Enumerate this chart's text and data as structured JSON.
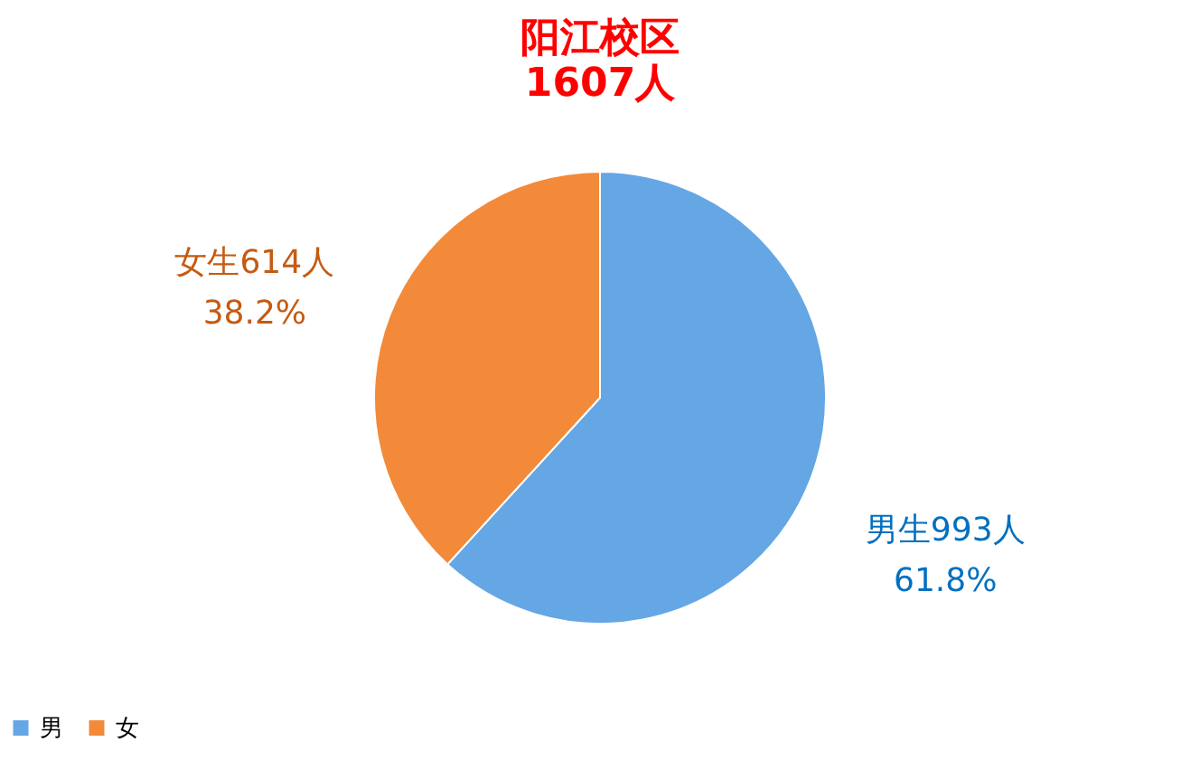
{
  "chart_data": {
    "type": "pie",
    "title": "阳江校区",
    "subtitle": "1607人",
    "categories": [
      "男",
      "女"
    ],
    "values": [
      993,
      614
    ],
    "colors": [
      "#65a6e4",
      "#f28a3a"
    ],
    "value_labels": [
      "男生993人\n61.8%",
      "女生614人\n38.2%"
    ],
    "legend": "bottom"
  }
}
